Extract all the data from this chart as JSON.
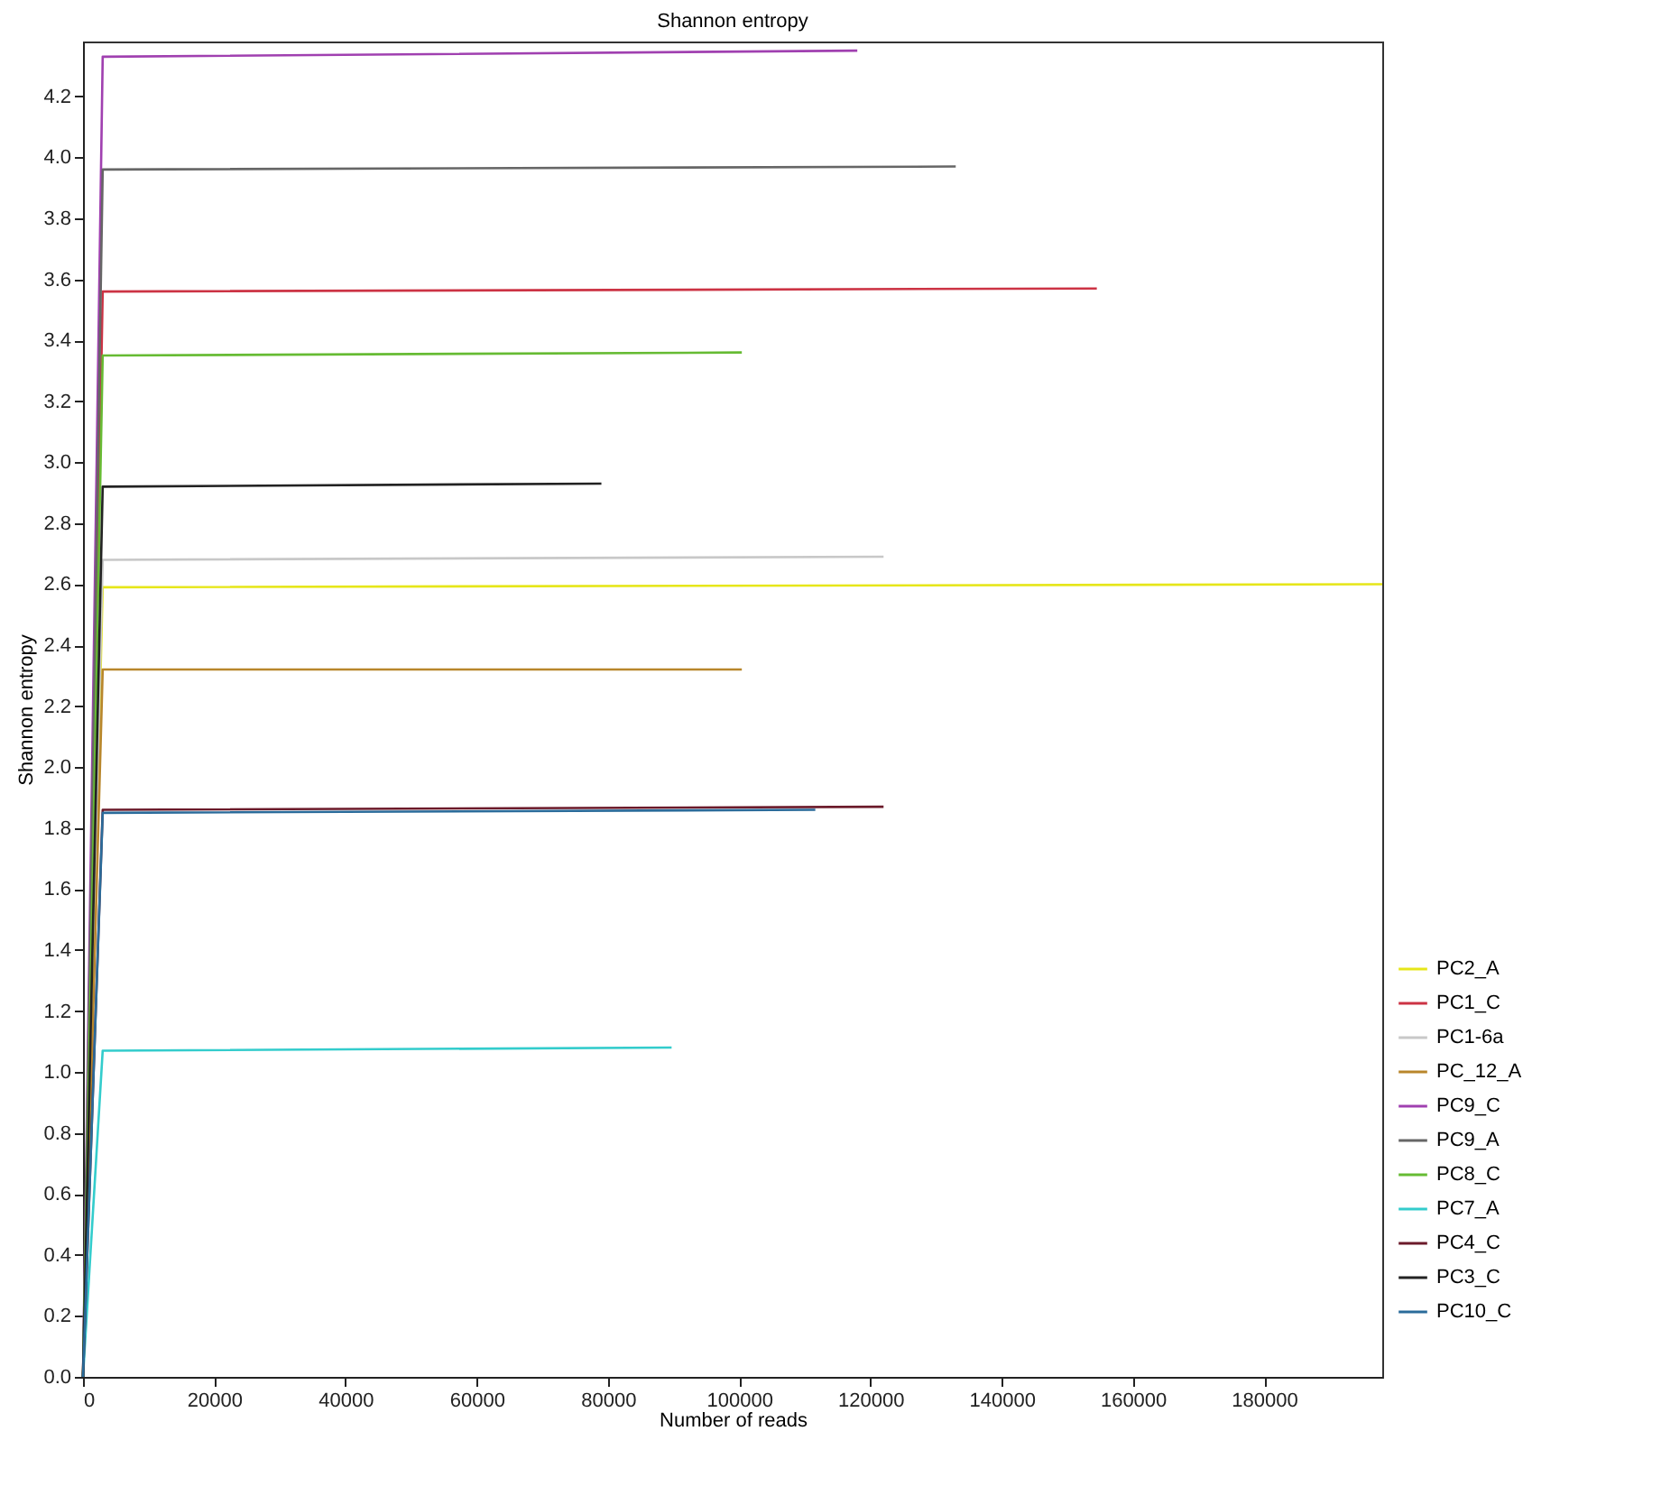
{
  "chart_data": {
    "type": "line",
    "title": "Shannon entropy",
    "xlabel": "Number of reads",
    "ylabel": "Shannon entropy",
    "xlim": [
      0,
      198000
    ],
    "xticks": [
      0,
      20000,
      40000,
      60000,
      80000,
      100000,
      120000,
      140000,
      160000,
      180000
    ],
    "ylim": [
      0,
      4.38
    ],
    "yticks": [
      {
        "value": 0,
        "label": "0.0"
      },
      {
        "value": 0.2,
        "label": "0.2"
      },
      {
        "value": 0.4,
        "label": "0.4"
      },
      {
        "value": 0.6,
        "label": "0.6"
      },
      {
        "value": 0.8,
        "label": "0.8"
      },
      {
        "value": 1,
        "label": "1.0"
      },
      {
        "value": 1.2,
        "label": "1.2"
      },
      {
        "value": 1.4,
        "label": "1.4"
      },
      {
        "value": 1.6,
        "label": "1.6"
      },
      {
        "value": 1.8,
        "label": "1.8"
      },
      {
        "value": 2,
        "label": "2.0"
      },
      {
        "value": 2.2,
        "label": "2.2"
      },
      {
        "value": 2.4,
        "label": "2.4"
      },
      {
        "value": 2.6,
        "label": "2.6"
      },
      {
        "value": 2.8,
        "label": "2.8"
      },
      {
        "value": 3,
        "label": "3.0"
      },
      {
        "value": 3.2,
        "label": "3.2"
      },
      {
        "value": 3.4,
        "label": "3.4"
      },
      {
        "value": 3.6,
        "label": "3.6"
      },
      {
        "value": 3.8,
        "label": "3.8"
      },
      {
        "value": 4,
        "label": "4.0"
      },
      {
        "value": 4.2,
        "label": "4.2"
      }
    ],
    "grid": false,
    "legend": "bottom right",
    "marker": "none",
    "line_style": "solid",
    "series": [
      {
        "name": "PC2_A",
        "color": "#e6e619",
        "x": [
          0,
          3000,
          198000
        ],
        "values": [
          0,
          2.59,
          2.6
        ]
      },
      {
        "name": "PC1_C",
        "color": "#cc3344",
        "x": [
          0,
          3000,
          154500
        ],
        "values": [
          0,
          3.56,
          3.57
        ]
      },
      {
        "name": "PC1-6a",
        "color": "#c8c8c8",
        "x": [
          0,
          3000,
          122000
        ],
        "values": [
          0,
          2.68,
          2.69
        ]
      },
      {
        "name": "PC_12_A",
        "color": "#b8862b",
        "x": [
          0,
          3000,
          100400
        ],
        "values": [
          0,
          2.32,
          2.32
        ]
      },
      {
        "name": "PC9_C",
        "color": "#a040b0",
        "x": [
          0,
          3000,
          118000
        ],
        "values": [
          0,
          4.33,
          4.35
        ]
      },
      {
        "name": "PC9_A",
        "color": "#666666",
        "x": [
          0,
          3000,
          133000
        ],
        "values": [
          0,
          3.96,
          3.97
        ]
      },
      {
        "name": "PC8_C",
        "color": "#66bb33",
        "x": [
          0,
          3000,
          100400
        ],
        "values": [
          0,
          3.35,
          3.36
        ]
      },
      {
        "name": "PC7_A",
        "color": "#33cccc",
        "x": [
          0,
          3000,
          89700
        ],
        "values": [
          0,
          1.07,
          1.08
        ]
      },
      {
        "name": "PC4_C",
        "color": "#6b1a2a",
        "x": [
          0,
          3000,
          122000
        ],
        "values": [
          0,
          1.86,
          1.87
        ]
      },
      {
        "name": "PC3_C",
        "color": "#222222",
        "x": [
          0,
          3000,
          79000
        ],
        "values": [
          0,
          2.92,
          2.93
        ]
      },
      {
        "name": "PC10_C",
        "color": "#2a6b9a",
        "x": [
          0,
          3000,
          111600
        ],
        "values": [
          0,
          1.85,
          1.86
        ]
      }
    ]
  }
}
